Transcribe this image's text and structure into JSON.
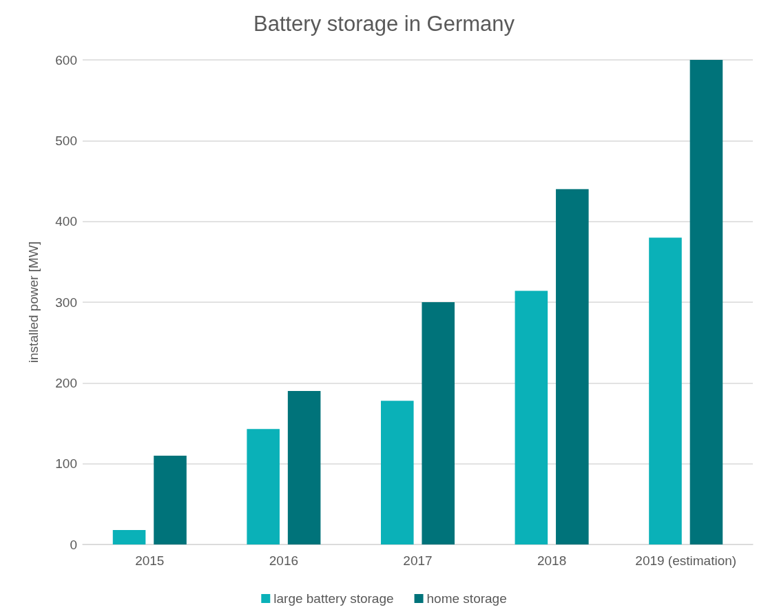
{
  "chart_data": {
    "type": "bar",
    "title": "Battery storage in Germany",
    "ylabel": "installed power [MW]",
    "categories": [
      "2015",
      "2016",
      "2017",
      "2018",
      "2019 (estimation)"
    ],
    "series": [
      {
        "name": "large battery storage",
        "color": "#0ab1b8",
        "values": [
          18,
          143,
          178,
          314,
          380
        ]
      },
      {
        "name": "home storage",
        "color": "#00737a",
        "values": [
          110,
          190,
          300,
          440,
          600
        ]
      }
    ],
    "ylim": [
      0,
      600
    ],
    "yticks": [
      0,
      100,
      200,
      300,
      400,
      500,
      600
    ],
    "grid": "y",
    "legend": "bottom"
  }
}
